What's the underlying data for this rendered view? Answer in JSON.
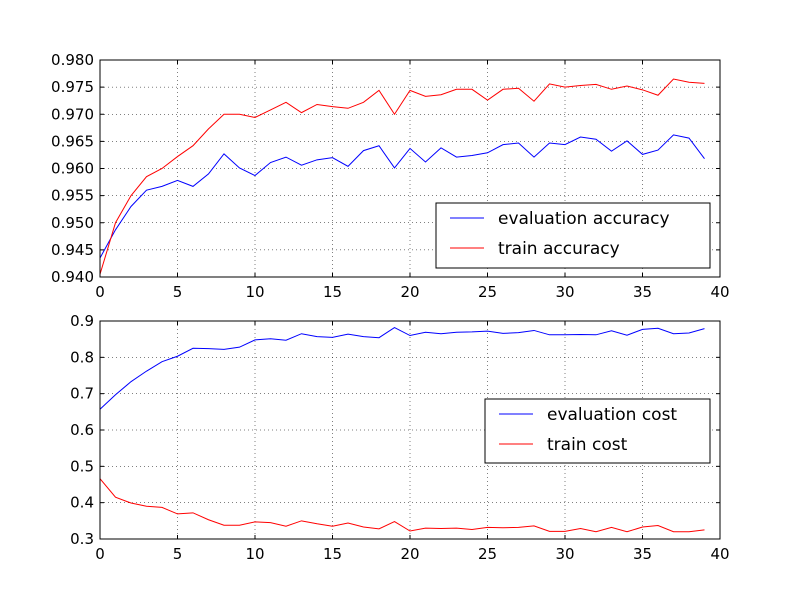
{
  "chart_data": [
    {
      "type": "line",
      "xlim": [
        0,
        40
      ],
      "ylim": [
        0.94,
        0.98
      ],
      "xticks": [
        "0",
        "5",
        "10",
        "15",
        "20",
        "25",
        "30",
        "35",
        "40"
      ],
      "yticks": [
        "0.940",
        "0.945",
        "0.950",
        "0.955",
        "0.960",
        "0.965",
        "0.970",
        "0.975",
        "0.980"
      ],
      "grid": true,
      "legend_position": "lower-right",
      "series": [
        {
          "name": "evaluation accuracy",
          "color": "#0000ff",
          "x": [
            0,
            1,
            2,
            3,
            4,
            5,
            6,
            7,
            8,
            9,
            10,
            11,
            12,
            13,
            14,
            15,
            16,
            17,
            18,
            19,
            20,
            21,
            22,
            23,
            24,
            25,
            26,
            27,
            28,
            29,
            30,
            31,
            32,
            33,
            34,
            35,
            36,
            37,
            38,
            39
          ],
          "values": [
            0.9435,
            0.9487,
            0.953,
            0.956,
            0.9567,
            0.9578,
            0.9567,
            0.959,
            0.9627,
            0.9601,
            0.9587,
            0.9611,
            0.9621,
            0.9606,
            0.9616,
            0.962,
            0.9604,
            0.9633,
            0.9642,
            0.9601,
            0.9637,
            0.9612,
            0.9638,
            0.9621,
            0.9624,
            0.9629,
            0.9644,
            0.9647,
            0.9621,
            0.9647,
            0.9644,
            0.9658,
            0.9654,
            0.9632,
            0.9651,
            0.9626,
            0.9634,
            0.9662,
            0.9656,
            0.9618
          ]
        },
        {
          "name": "train accuracy",
          "color": "#ff0000",
          "x": [
            0,
            1,
            2,
            3,
            4,
            5,
            6,
            7,
            8,
            9,
            10,
            11,
            12,
            13,
            14,
            15,
            16,
            17,
            18,
            19,
            20,
            21,
            22,
            23,
            24,
            25,
            26,
            27,
            28,
            29,
            30,
            31,
            32,
            33,
            34,
            35,
            36,
            37,
            38,
            39
          ],
          "values": [
            0.9405,
            0.95,
            0.955,
            0.9585,
            0.96,
            0.9622,
            0.9642,
            0.9673,
            0.97,
            0.97,
            0.9694,
            0.9708,
            0.9722,
            0.9703,
            0.9718,
            0.9714,
            0.9711,
            0.9722,
            0.9744,
            0.97,
            0.9744,
            0.9733,
            0.9736,
            0.9746,
            0.9746,
            0.9726,
            0.9746,
            0.9748,
            0.9724,
            0.9756,
            0.975,
            0.9753,
            0.9755,
            0.9746,
            0.9752,
            0.9745,
            0.9735,
            0.9765,
            0.9759,
            0.9757
          ]
        }
      ]
    },
    {
      "type": "line",
      "xlim": [
        0,
        40
      ],
      "ylim": [
        0.3,
        0.9
      ],
      "xticks": [
        "0",
        "5",
        "10",
        "15",
        "20",
        "25",
        "30",
        "35",
        "40"
      ],
      "yticks": [
        "0.3",
        "0.4",
        "0.5",
        "0.6",
        "0.7",
        "0.8",
        "0.9"
      ],
      "grid": true,
      "legend_position": "center-right",
      "series": [
        {
          "name": "evaluation cost",
          "color": "#0000ff",
          "x": [
            0,
            1,
            2,
            3,
            4,
            5,
            6,
            7,
            8,
            9,
            10,
            11,
            12,
            13,
            14,
            15,
            16,
            17,
            18,
            19,
            20,
            21,
            22,
            23,
            24,
            25,
            26,
            27,
            28,
            29,
            30,
            31,
            32,
            33,
            34,
            35,
            36,
            37,
            38,
            39
          ],
          "values": [
            0.657,
            0.697,
            0.733,
            0.762,
            0.788,
            0.803,
            0.825,
            0.824,
            0.822,
            0.828,
            0.848,
            0.851,
            0.847,
            0.865,
            0.857,
            0.855,
            0.864,
            0.857,
            0.854,
            0.882,
            0.86,
            0.869,
            0.865,
            0.869,
            0.87,
            0.872,
            0.866,
            0.868,
            0.874,
            0.862,
            0.862,
            0.863,
            0.862,
            0.873,
            0.861,
            0.877,
            0.88,
            0.865,
            0.867,
            0.879
          ]
        },
        {
          "name": "train cost",
          "color": "#ff0000",
          "x": [
            0,
            1,
            2,
            3,
            4,
            5,
            6,
            7,
            8,
            9,
            10,
            11,
            12,
            13,
            14,
            15,
            16,
            17,
            18,
            19,
            20,
            21,
            22,
            23,
            24,
            25,
            26,
            27,
            28,
            29,
            30,
            31,
            32,
            33,
            34,
            35,
            36,
            37,
            38,
            39
          ],
          "values": [
            0.466,
            0.415,
            0.399,
            0.39,
            0.387,
            0.369,
            0.372,
            0.353,
            0.338,
            0.338,
            0.347,
            0.345,
            0.335,
            0.35,
            0.342,
            0.335,
            0.344,
            0.333,
            0.328,
            0.348,
            0.322,
            0.33,
            0.329,
            0.33,
            0.326,
            0.332,
            0.331,
            0.332,
            0.336,
            0.321,
            0.321,
            0.329,
            0.32,
            0.332,
            0.32,
            0.333,
            0.337,
            0.32,
            0.32,
            0.325
          ]
        }
      ]
    }
  ]
}
